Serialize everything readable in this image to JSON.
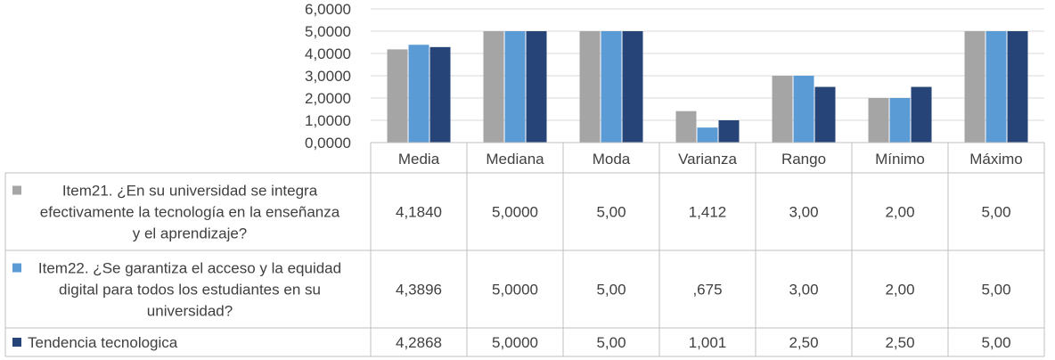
{
  "chart_data": {
    "type": "bar",
    "categories": [
      "Media",
      "Mediana",
      "Moda",
      "Varianza",
      "Rango",
      "Mínimo",
      "Máximo"
    ],
    "ylim": [
      0,
      6
    ],
    "yticks": [
      "0,0000",
      "1,0000",
      "2,0000",
      "3,0000",
      "4,0000",
      "5,0000",
      "6,0000"
    ],
    "grid": true,
    "series": [
      {
        "name": "Item21. ¿En su universidad se integra efectivamente la tecnología en la enseñanza y el aprendizaje?",
        "name_lines": [
          "Item21. ¿En su universidad se integra",
          "efectivamente la tecnología en la enseñanza",
          "y el aprendizaje?"
        ],
        "color": "#A5A5A5",
        "values": [
          4.184,
          5.0,
          5.0,
          1.412,
          3.0,
          2.0,
          5.0
        ],
        "labels": [
          "4,1840",
          "5,0000",
          "5,00",
          "1,412",
          "3,00",
          "2,00",
          "5,00"
        ]
      },
      {
        "name": "Item22. ¿Se garantiza el acceso y la equidad digital para todos los estudiantes en su universidad?",
        "name_lines": [
          "Item22. ¿Se garantiza el acceso y la equidad",
          "digital para todos los estudiantes en su",
          "universidad?"
        ],
        "color": "#5B9BD5",
        "values": [
          4.3896,
          5.0,
          5.0,
          0.675,
          3.0,
          2.0,
          5.0
        ],
        "labels": [
          "4,3896",
          "5,0000",
          "5,00",
          ",675",
          "3,00",
          "2,00",
          "5,00"
        ]
      },
      {
        "name": "Tendencia tecnologica",
        "name_lines": [
          "Tendencia tecnologica"
        ],
        "color": "#264478",
        "values": [
          4.2868,
          5.0,
          5.0,
          1.001,
          2.5,
          2.5,
          5.0
        ],
        "labels": [
          "4,2868",
          "5,0000",
          "5,00",
          "1,001",
          "2,50",
          "2,50",
          "5,00"
        ]
      }
    ]
  }
}
